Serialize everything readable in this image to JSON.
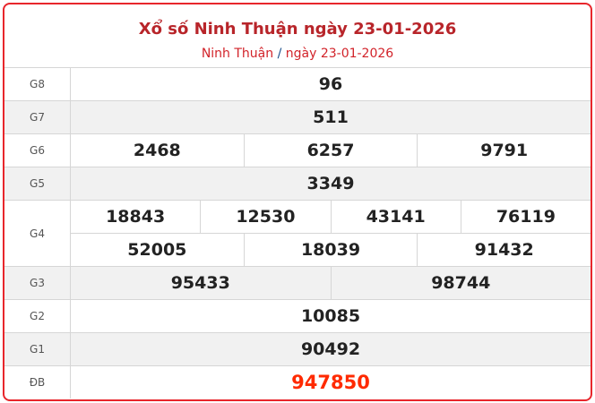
{
  "header": {
    "title": "Xổ số Ninh Thuận ngày 23-01-2026",
    "breadcrumb": {
      "province": "Ninh Thuận",
      "separator": "/",
      "date": "ngày 23-01-2026"
    }
  },
  "prizes": [
    {
      "label": "G8",
      "numbers": [
        "96"
      ]
    },
    {
      "label": "G7",
      "numbers": [
        "511"
      ]
    },
    {
      "label": "G6",
      "numbers": [
        "2468",
        "6257",
        "9791"
      ]
    },
    {
      "label": "G5",
      "numbers": [
        "3349"
      ]
    },
    {
      "label": "G4",
      "numbers": [
        "18843",
        "12530",
        "43141",
        "76119",
        "52005",
        "18039",
        "91432"
      ]
    },
    {
      "label": "G3",
      "numbers": [
        "95433",
        "98744"
      ]
    },
    {
      "label": "G2",
      "numbers": [
        "10085"
      ]
    },
    {
      "label": "G1",
      "numbers": [
        "90492"
      ]
    },
    {
      "label": "ĐB",
      "numbers": [
        "947850"
      ]
    }
  ],
  "colors": {
    "border": "#e8262c",
    "title": "#b8252a",
    "special": "#ff2a00"
  }
}
